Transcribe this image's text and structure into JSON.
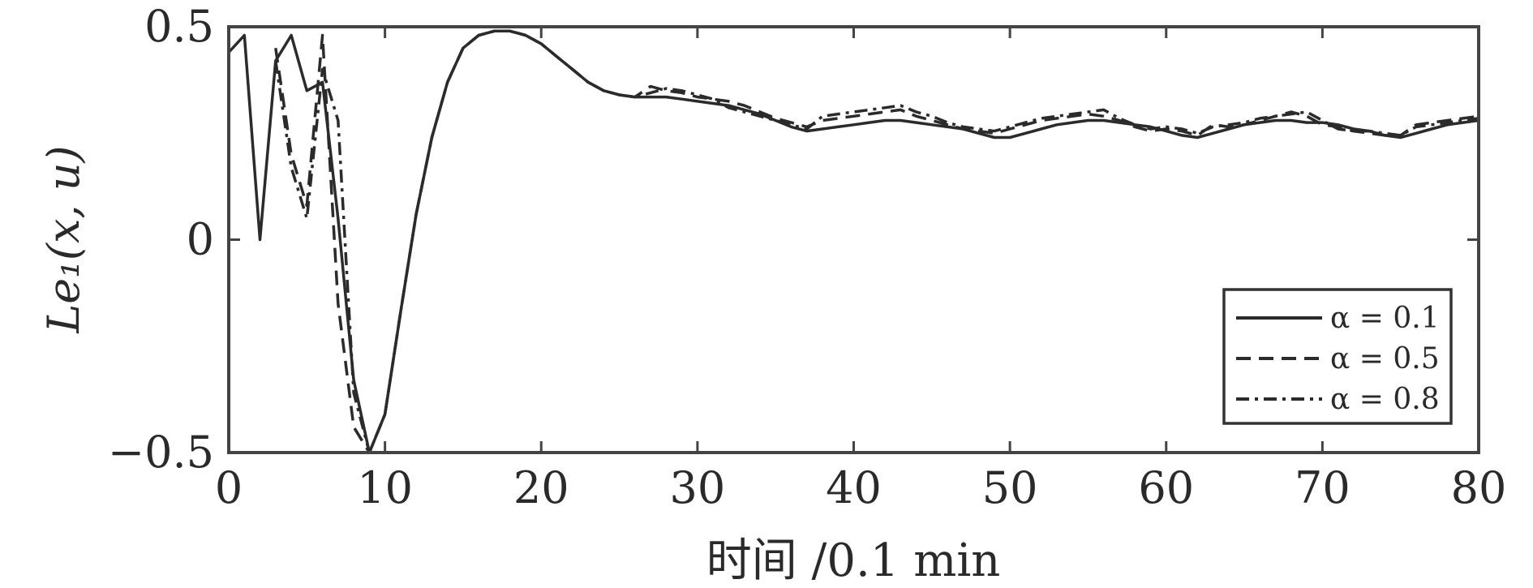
{
  "chart_data": {
    "type": "line",
    "xlabel": "时间 /0.1 min",
    "ylabel": "Le₁(x, u)",
    "xlim": [
      0,
      80
    ],
    "ylim": [
      -0.5,
      0.5
    ],
    "xticks": [
      "0",
      "10",
      "20",
      "30",
      "40",
      "50",
      "60",
      "70",
      "80"
    ],
    "yticks": [
      "−0.5",
      "0",
      "0.5"
    ],
    "grid": false,
    "legend_position": "bottom-right",
    "line_color": "#2b2b2b",
    "series": [
      {
        "name": "α = 0.1",
        "style": "solid",
        "x": [
          0,
          1,
          2,
          3,
          4,
          5,
          6,
          7,
          8,
          9,
          10,
          11,
          12,
          13,
          14,
          15,
          16,
          17,
          18,
          19,
          20,
          21,
          22,
          23,
          24,
          25,
          26,
          27,
          28,
          29,
          30,
          31,
          32,
          33,
          34,
          35,
          36,
          37,
          38,
          39,
          40,
          41,
          42,
          43,
          44,
          45,
          46,
          47,
          48,
          49,
          50,
          51,
          52,
          53,
          54,
          55,
          56,
          57,
          58,
          59,
          60,
          61,
          62,
          63,
          64,
          65,
          66,
          67,
          68,
          69,
          70,
          71,
          72,
          73,
          74,
          75,
          76,
          77,
          78,
          79,
          80
        ],
        "y": [
          0.44,
          0.48,
          0.0,
          0.42,
          0.48,
          0.35,
          0.37,
          0.05,
          -0.33,
          -0.5,
          -0.41,
          -0.17,
          0.06,
          0.24,
          0.37,
          0.45,
          0.48,
          0.49,
          0.49,
          0.48,
          0.46,
          0.43,
          0.4,
          0.37,
          0.35,
          0.34,
          0.335,
          0.335,
          0.335,
          0.33,
          0.325,
          0.32,
          0.315,
          0.305,
          0.295,
          0.28,
          0.265,
          0.255,
          0.26,
          0.265,
          0.27,
          0.275,
          0.28,
          0.28,
          0.275,
          0.27,
          0.265,
          0.26,
          0.25,
          0.24,
          0.24,
          0.25,
          0.26,
          0.27,
          0.275,
          0.28,
          0.28,
          0.275,
          0.27,
          0.265,
          0.255,
          0.245,
          0.24,
          0.25,
          0.26,
          0.27,
          0.275,
          0.28,
          0.28,
          0.275,
          0.275,
          0.27,
          0.26,
          0.255,
          0.245,
          0.24,
          0.25,
          0.26,
          0.27,
          0.275,
          0.28
        ]
      },
      {
        "name": "α = 0.5",
        "style": "dashed",
        "x": [
          3,
          4,
          5,
          6,
          7,
          8,
          9,
          10,
          11,
          12,
          13,
          14,
          15,
          16,
          17,
          18,
          19,
          20,
          21,
          22,
          23,
          24,
          25,
          26,
          27,
          28,
          29,
          30,
          31,
          32,
          33,
          34,
          35,
          36,
          37,
          38,
          39,
          40,
          41,
          42,
          43,
          44,
          45,
          46,
          47,
          48,
          49,
          50,
          51,
          52,
          53,
          54,
          55,
          56,
          57,
          58,
          59,
          60,
          61,
          62,
          63,
          64,
          65,
          66,
          67,
          68,
          69,
          70,
          71,
          72,
          73,
          74,
          75,
          76,
          77,
          78,
          79,
          80
        ],
        "y": [
          0.45,
          0.2,
          0.08,
          0.48,
          -0.15,
          -0.44,
          -0.5,
          -0.41,
          -0.17,
          0.06,
          0.24,
          0.37,
          0.45,
          0.48,
          0.49,
          0.49,
          0.48,
          0.46,
          0.43,
          0.4,
          0.37,
          0.35,
          0.34,
          0.335,
          0.36,
          0.35,
          0.345,
          0.335,
          0.33,
          0.325,
          0.315,
          0.3,
          0.285,
          0.275,
          0.265,
          0.28,
          0.285,
          0.29,
          0.295,
          0.3,
          0.305,
          0.29,
          0.28,
          0.27,
          0.26,
          0.255,
          0.25,
          0.26,
          0.27,
          0.28,
          0.285,
          0.29,
          0.295,
          0.29,
          0.28,
          0.265,
          0.255,
          0.26,
          0.255,
          0.245,
          0.27,
          0.265,
          0.27,
          0.28,
          0.29,
          0.3,
          0.29,
          0.27,
          0.265,
          0.255,
          0.25,
          0.245,
          0.245,
          0.27,
          0.275,
          0.28,
          0.285,
          0.29
        ]
      },
      {
        "name": "α = 0.8",
        "style": "dashdot",
        "x": [
          3,
          4,
          5,
          6,
          7,
          8,
          9,
          10,
          11,
          12,
          13,
          14,
          15,
          16,
          17,
          18,
          19,
          20,
          21,
          22,
          23,
          24,
          25,
          26,
          27,
          28,
          29,
          30,
          31,
          32,
          33,
          34,
          35,
          36,
          37,
          38,
          39,
          40,
          41,
          42,
          43,
          44,
          45,
          46,
          47,
          48,
          49,
          50,
          51,
          52,
          53,
          54,
          55,
          56,
          57,
          58,
          59,
          60,
          61,
          62,
          63,
          64,
          65,
          66,
          67,
          68,
          69,
          70,
          71,
          72,
          73,
          74,
          75,
          76,
          77,
          78,
          79,
          80
        ],
        "y": [
          0.42,
          0.17,
          0.05,
          0.4,
          0.28,
          -0.36,
          -0.5,
          -0.41,
          -0.17,
          0.06,
          0.24,
          0.37,
          0.45,
          0.48,
          0.49,
          0.49,
          0.48,
          0.46,
          0.43,
          0.4,
          0.37,
          0.35,
          0.34,
          0.335,
          0.345,
          0.355,
          0.35,
          0.34,
          0.33,
          0.31,
          0.3,
          0.29,
          0.28,
          0.27,
          0.26,
          0.29,
          0.295,
          0.3,
          0.305,
          0.31,
          0.315,
          0.3,
          0.29,
          0.275,
          0.265,
          0.26,
          0.255,
          0.265,
          0.275,
          0.285,
          0.29,
          0.295,
          0.3,
          0.305,
          0.285,
          0.27,
          0.26,
          0.265,
          0.26,
          0.25,
          0.265,
          0.27,
          0.275,
          0.285,
          0.29,
          0.295,
          0.3,
          0.28,
          0.26,
          0.255,
          0.255,
          0.25,
          0.245,
          0.265,
          0.27,
          0.275,
          0.28,
          0.285
        ]
      }
    ]
  }
}
